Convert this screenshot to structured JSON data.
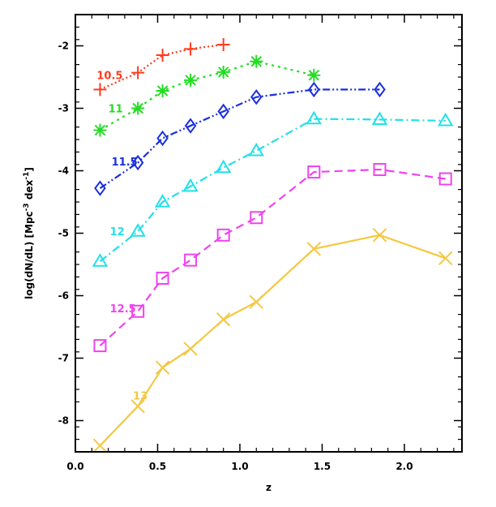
{
  "chart_data": {
    "type": "line",
    "xlabel": "z",
    "ylabel": "log(dN/dL) [Mpc",
    "ylabel_exp1": "-3",
    "ylabel_mid": " dex",
    "ylabel_exp2": "-1",
    "ylabel_end": "]",
    "xlim": [
      0.0,
      2.35
    ],
    "ylim": [
      -8.5,
      -1.5
    ],
    "xticks": [
      0.0,
      0.5,
      1.0,
      1.5,
      2.0
    ],
    "xtick_labels": [
      "0.0",
      "0.5",
      "1.0",
      "1.5",
      "2.0"
    ],
    "yticks": [
      -8,
      -7,
      -6,
      -5,
      -4,
      -3,
      -2
    ],
    "ytick_labels": [
      "-8",
      "-7",
      "-6",
      "-5",
      "-4",
      "-3",
      "-2"
    ],
    "grid": false,
    "series": [
      {
        "name": "10.5",
        "color": "#ff3b1f",
        "marker": "plus",
        "dash": "dot",
        "x": [
          0.15,
          0.38,
          0.53,
          0.7,
          0.9
        ],
        "y": [
          -2.7,
          -2.43,
          -2.15,
          -2.05,
          -1.98
        ]
      },
      {
        "name": "11",
        "color": "#22dd22",
        "marker": "asterisk",
        "dash": "dots",
        "x": [
          0.15,
          0.38,
          0.53,
          0.7,
          0.9,
          1.1,
          1.45
        ],
        "y": [
          -3.35,
          -3.0,
          -2.72,
          -2.55,
          -2.42,
          -2.25,
          -2.47
        ]
      },
      {
        "name": "11.5",
        "color": "#1a2fdd",
        "marker": "diamond",
        "dash": "dashdotdot",
        "x": [
          0.15,
          0.38,
          0.53,
          0.7,
          0.9,
          1.1,
          1.45,
          1.85
        ],
        "y": [
          -4.28,
          -3.87,
          -3.48,
          -3.28,
          -3.05,
          -2.82,
          -2.7,
          -2.7
        ]
      },
      {
        "name": "12",
        "color": "#22e0e8",
        "marker": "triangle",
        "dash": "dashdot",
        "x": [
          0.15,
          0.38,
          0.53,
          0.7,
          0.9,
          1.1,
          1.45,
          1.85,
          2.25
        ],
        "y": [
          -5.45,
          -4.97,
          -4.5,
          -4.25,
          -3.95,
          -3.68,
          -3.17,
          -3.18,
          -3.2
        ]
      },
      {
        "name": "12.5",
        "color": "#ee44ee",
        "marker": "square",
        "dash": "dash",
        "x": [
          0.15,
          0.38,
          0.53,
          0.7,
          0.9,
          1.1,
          1.45,
          1.85,
          2.25
        ],
        "y": [
          -6.8,
          -6.25,
          -5.72,
          -5.43,
          -5.03,
          -4.75,
          -4.02,
          -3.98,
          -4.13
        ]
      },
      {
        "name": "13",
        "color": "#f5c842",
        "marker": "x",
        "dash": "solid",
        "x": [
          0.15,
          0.38,
          0.53,
          0.7,
          0.9,
          1.1,
          1.45,
          1.85,
          2.25
        ],
        "y": [
          -8.4,
          -7.77,
          -7.15,
          -6.85,
          -6.38,
          -6.1,
          -5.25,
          -5.03,
          -5.4
        ]
      }
    ],
    "series_label_anchor": [
      {
        "x": 0.13,
        "y": -2.47
      },
      {
        "x": 0.2,
        "y": -3.0
      },
      {
        "x": 0.22,
        "y": -3.85
      },
      {
        "x": 0.21,
        "y": -4.97
      },
      {
        "x": 0.21,
        "y": -6.2
      },
      {
        "x": 0.35,
        "y": -7.6
      }
    ]
  }
}
